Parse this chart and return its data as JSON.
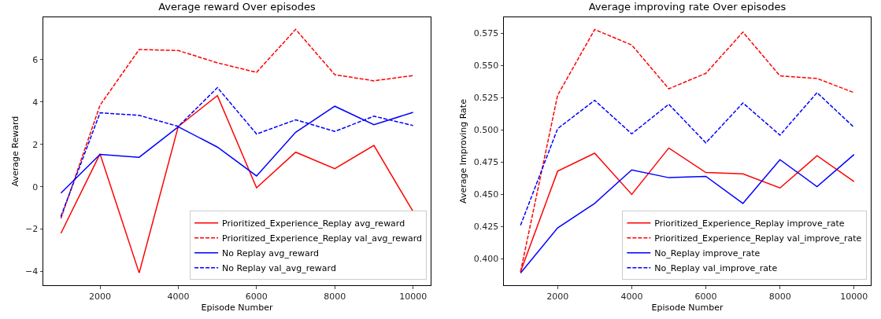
{
  "chart_data": [
    {
      "type": "line",
      "title": "Average reward Over episodes",
      "xlabel": "Episode Number",
      "ylabel": "Average Reward",
      "x": [
        1000,
        2000,
        3000,
        4000,
        5000,
        6000,
        7000,
        8000,
        9000,
        10000
      ],
      "series": [
        {
          "name": "Prioritized_Experience_Replay avg_reward",
          "color": "#ff0000",
          "line_style": "solid",
          "values": [
            -2.2,
            1.55,
            -4.07,
            2.85,
            4.3,
            -0.05,
            1.63,
            0.85,
            1.95,
            -1.17
          ]
        },
        {
          "name": "Prioritized_Experience_Replay val_avg_reward",
          "color": "#ff0000",
          "line_style": "dashed",
          "values": [
            -1.5,
            3.85,
            6.48,
            6.43,
            5.85,
            5.4,
            7.43,
            5.29,
            5.0,
            5.25
          ]
        },
        {
          "name": "No Replay avg_reward",
          "color": "#0000ff",
          "line_style": "solid",
          "values": [
            -0.3,
            1.53,
            1.39,
            2.83,
            1.87,
            0.51,
            2.57,
            3.8,
            2.93,
            3.51
          ]
        },
        {
          "name": "No Replay val_avg_reward",
          "color": "#0000ff",
          "line_style": "dashed",
          "values": [
            -1.4,
            3.49,
            3.37,
            2.85,
            4.68,
            2.49,
            3.16,
            2.61,
            3.33,
            2.89
          ]
        }
      ],
      "xlim": [
        550,
        10450
      ],
      "xticks": [
        2000,
        4000,
        6000,
        8000,
        10000
      ],
      "ylim": [
        -4.65,
        8.0
      ],
      "yticks": [
        -4,
        -2,
        0,
        2,
        4,
        6
      ],
      "grid": false,
      "legend": "bottom right",
      "marker": "none"
    },
    {
      "type": "line",
      "title": "Average improving rate Over episodes",
      "xlabel": "Episode Number",
      "ylabel": "Average Improving Rate",
      "x": [
        1000,
        2000,
        3000,
        4000,
        5000,
        6000,
        7000,
        8000,
        9000,
        10000
      ],
      "series": [
        {
          "name": "Prioritized_Experience_Replay improve_rate",
          "color": "#ff0000",
          "line_style": "solid",
          "values": [
            0.39,
            0.468,
            0.482,
            0.45,
            0.486,
            0.467,
            0.466,
            0.455,
            0.48,
            0.46
          ]
        },
        {
          "name": "Prioritized_Experience_Replay val_improve_rate",
          "color": "#ff0000",
          "line_style": "dashed",
          "values": [
            0.39,
            0.527,
            0.578,
            0.566,
            0.532,
            0.544,
            0.576,
            0.542,
            0.54,
            0.529
          ]
        },
        {
          "name": "No_Replay improve_rate",
          "color": "#0000ff",
          "line_style": "solid",
          "values": [
            0.389,
            0.424,
            0.443,
            0.469,
            0.463,
            0.464,
            0.443,
            0.477,
            0.456,
            0.481
          ]
        },
        {
          "name": "No_Replay val_improve_rate",
          "color": "#0000ff",
          "line_style": "dashed",
          "values": [
            0.426,
            0.501,
            0.523,
            0.497,
            0.52,
            0.49,
            0.521,
            0.496,
            0.529,
            0.502
          ]
        }
      ],
      "xlim": [
        550,
        10450
      ],
      "xticks": [
        2000,
        4000,
        6000,
        8000,
        10000
      ],
      "ylim": [
        0.3795,
        0.5875
      ],
      "yticks": [
        {
          "value": 0.4,
          "label": "0.400"
        },
        {
          "value": 0.425,
          "label": "0.425"
        },
        {
          "value": 0.45,
          "label": "0.450"
        },
        {
          "value": 0.475,
          "label": "0.475"
        },
        {
          "value": 0.5,
          "label": "0.500"
        },
        {
          "value": 0.525,
          "label": "0.525"
        },
        {
          "value": 0.55,
          "label": "0.550"
        },
        {
          "value": 0.575,
          "label": "0.575"
        }
      ],
      "grid": false,
      "legend": "bottom right",
      "marker": "none"
    }
  ]
}
